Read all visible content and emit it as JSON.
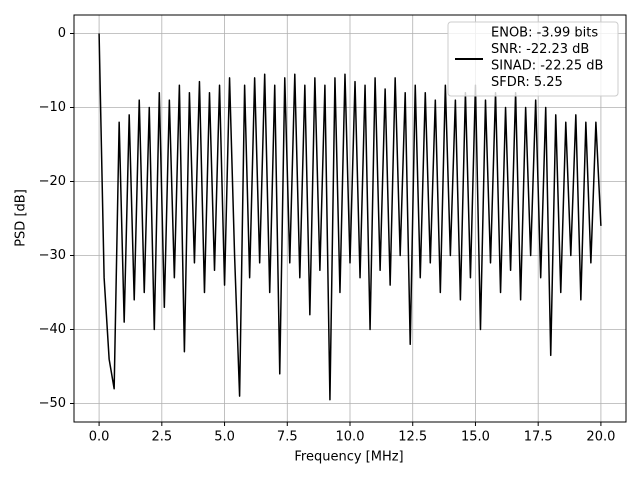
{
  "chart_data": {
    "type": "line",
    "xlabel": "Frequency [MHz]",
    "ylabel": "PSD [dB]",
    "x": [
      0,
      0.2,
      0.4,
      0.6,
      0.8,
      1.0,
      1.2,
      1.4,
      1.6,
      1.8,
      2.0,
      2.2,
      2.4,
      2.6,
      2.8,
      3.0,
      3.2,
      3.4,
      3.6,
      3.8,
      4.0,
      4.2,
      4.4,
      4.6,
      4.8,
      5.0,
      5.2,
      5.4,
      5.6,
      5.8,
      6.0,
      6.2,
      6.4,
      6.6,
      6.8,
      7.0,
      7.2,
      7.4,
      7.6,
      7.8,
      8.0,
      8.2,
      8.4,
      8.6,
      8.8,
      9.0,
      9.2,
      9.4,
      9.6,
      9.8,
      10.0,
      10.2,
      10.4,
      10.6,
      10.8,
      11.0,
      11.2,
      11.4,
      11.6,
      11.8,
      12.0,
      12.2,
      12.4,
      12.6,
      12.8,
      13.0,
      13.2,
      13.4,
      13.6,
      13.8,
      14.0,
      14.2,
      14.4,
      14.6,
      14.8,
      15.0,
      15.2,
      15.4,
      15.6,
      15.8,
      16.0,
      16.2,
      16.4,
      16.6,
      16.8,
      17.0,
      17.2,
      17.4,
      17.6,
      17.8,
      18.0,
      18.2,
      18.4,
      18.6,
      18.8,
      19.0,
      19.2,
      19.4,
      19.6,
      19.8,
      20.0
    ],
    "series": [
      {
        "name": [
          "ENOB: -3.99 bits",
          "SNR: -22.23 dB",
          "SINAD: -22.25 dB",
          "SFDR: 5.25"
        ],
        "color": "#000000",
        "values": [
          0,
          -33,
          -44,
          -48,
          -12,
          -39,
          -11,
          -36,
          -9,
          -35,
          -10,
          -40,
          -8,
          -37,
          -9,
          -33,
          -7,
          -43,
          -8,
          -31,
          -6.5,
          -35,
          -8,
          -32,
          -7,
          -34,
          -6,
          -30,
          -49,
          -7,
          -33,
          -6,
          -31,
          -5.5,
          -35,
          -7,
          -46,
          -6,
          -31,
          -5.5,
          -33,
          -7,
          -38,
          -6,
          -32,
          -7,
          -49.5,
          -6,
          -35,
          -5.5,
          -31,
          -6.5,
          -33,
          -7,
          -40,
          -6,
          -32,
          -7.5,
          -34,
          -6,
          -30,
          -8,
          -42,
          -7,
          -33,
          -8,
          -31,
          -9,
          -35,
          -7,
          -30,
          -9,
          -36,
          -8,
          -33,
          -7,
          -40,
          -9,
          -31,
          -8,
          -35,
          -10,
          -32,
          -8,
          -36,
          -10,
          -30,
          -9,
          -33,
          -10,
          -43.5,
          -11,
          -35,
          -12,
          -30,
          -11,
          -36,
          -12,
          -31,
          -12,
          -26
        ]
      }
    ],
    "xlim": [
      -1,
      21
    ],
    "ylim": [
      -52.5,
      2.5
    ],
    "xticks": [
      {
        "value": 0,
        "label": "0.0"
      },
      {
        "value": 2.5,
        "label": "2.5"
      },
      {
        "value": 5,
        "label": "5.0"
      },
      {
        "value": 7.5,
        "label": "7.5"
      },
      {
        "value": 10,
        "label": "10.0"
      },
      {
        "value": 12.5,
        "label": "12.5"
      },
      {
        "value": 15,
        "label": "15.0"
      },
      {
        "value": 17.5,
        "label": "17.5"
      },
      {
        "value": 20,
        "label": "20.0"
      }
    ],
    "yticks": [
      0,
      {
        "value": -10,
        "label": "−10"
      },
      {
        "value": -20,
        "label": "−20"
      },
      {
        "value": -30,
        "label": "−30"
      },
      {
        "value": -40,
        "label": "−40"
      },
      {
        "value": -50,
        "label": "−50"
      }
    ],
    "grid": true,
    "legend": "upper right"
  }
}
